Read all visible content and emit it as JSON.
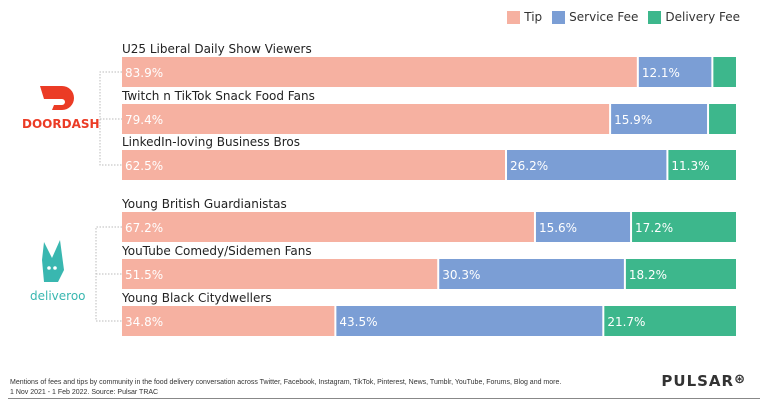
{
  "legend": [
    {
      "label": "Tip",
      "color": "#f6b1a1"
    },
    {
      "label": "Service Fee",
      "color": "#7b9ed5"
    },
    {
      "label": "Delivery Fee",
      "color": "#3db78c"
    }
  ],
  "logos": {
    "doordash": "DOORDASH",
    "deliveroo": "deliveroo",
    "pulsar": "PULSAR"
  },
  "chart_data": {
    "type": "bar",
    "orientation": "horizontal",
    "stacked": true,
    "normalized": true,
    "xlim": [
      0,
      100
    ],
    "groups": [
      {
        "brand": "DOORDASH",
        "categories": [
          "U25 Liberal Daily Show Viewers",
          "Twitch n TikTok Snack Food Fans",
          "LinkedIn-loving Business Bros"
        ]
      },
      {
        "brand": "deliveroo",
        "categories": [
          "Young British Guardianistas",
          "YouTube Comedy/Sidemen Fans",
          "Young Black Citydwellers"
        ]
      }
    ],
    "categories": [
      "U25 Liberal Daily Show Viewers",
      "Twitch n TikTok Snack Food Fans",
      "LinkedIn-loving Business Bros",
      "Young British Guardianistas",
      "YouTube Comedy/Sidemen Fans",
      "Young Black Citydwellers"
    ],
    "series": [
      {
        "name": "Tip",
        "values": [
          83.9,
          79.4,
          62.5,
          67.2,
          51.5,
          34.8
        ]
      },
      {
        "name": "Service Fee",
        "values": [
          12.1,
          15.9,
          26.2,
          15.6,
          30.3,
          43.5
        ]
      },
      {
        "name": "Delivery Fee",
        "values": [
          4.0,
          4.7,
          11.3,
          17.2,
          18.2,
          21.7
        ],
        "labeled": [
          false,
          false,
          true,
          true,
          true,
          true
        ]
      }
    ]
  },
  "footer": {
    "line1": "Mentions of fees and tips by community in the food delivery conversation across Twitter, Facebook, Instagram, TikTok, Pinterest, News, Tumblr, YouTube, Forums, Blog and more.",
    "line2": "1 Nov 2021 - 1 Feb 2022. Source: Pulsar  TRAC"
  }
}
